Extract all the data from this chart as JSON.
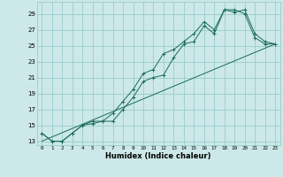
{
  "xlabel": "Humidex (Indice chaleur)",
  "bg_color": "#cce8e8",
  "grid_color": "#99cccc",
  "line_color": "#1a6b5a",
  "xlim": [
    -0.5,
    23.5
  ],
  "ylim": [
    12.5,
    30.5
  ],
  "xticks": [
    0,
    1,
    2,
    3,
    4,
    5,
    6,
    7,
    8,
    9,
    10,
    11,
    12,
    13,
    14,
    15,
    16,
    17,
    18,
    19,
    20,
    21,
    22,
    23
  ],
  "yticks": [
    13,
    15,
    17,
    19,
    21,
    23,
    25,
    27,
    29
  ],
  "line1_x": [
    0,
    1,
    2,
    3,
    4,
    5,
    6,
    7,
    8,
    9,
    10,
    11,
    12,
    13,
    14,
    15,
    16,
    17,
    18,
    19,
    20,
    21,
    22,
    23
  ],
  "line1_y": [
    14.0,
    13.0,
    13.0,
    14.0,
    15.0,
    15.2,
    15.5,
    15.5,
    17.0,
    18.5,
    20.5,
    21.0,
    21.3,
    23.5,
    25.2,
    25.5,
    27.5,
    26.5,
    29.5,
    29.5,
    29.0,
    26.0,
    25.2,
    25.2
  ],
  "line2_x": [
    0,
    1,
    2,
    3,
    4,
    5,
    6,
    7,
    8,
    9,
    10,
    11,
    12,
    13,
    14,
    15,
    16,
    17,
    18,
    19,
    20,
    21,
    22,
    23
  ],
  "line2_y": [
    14.0,
    13.0,
    13.0,
    14.0,
    15.0,
    15.5,
    15.5,
    16.5,
    18.0,
    19.5,
    21.5,
    22.0,
    24.0,
    24.5,
    25.5,
    26.5,
    28.0,
    27.0,
    29.5,
    29.2,
    29.5,
    26.5,
    25.5,
    25.2
  ],
  "line3_x": [
    0,
    23
  ],
  "line3_y": [
    13.0,
    25.2
  ]
}
